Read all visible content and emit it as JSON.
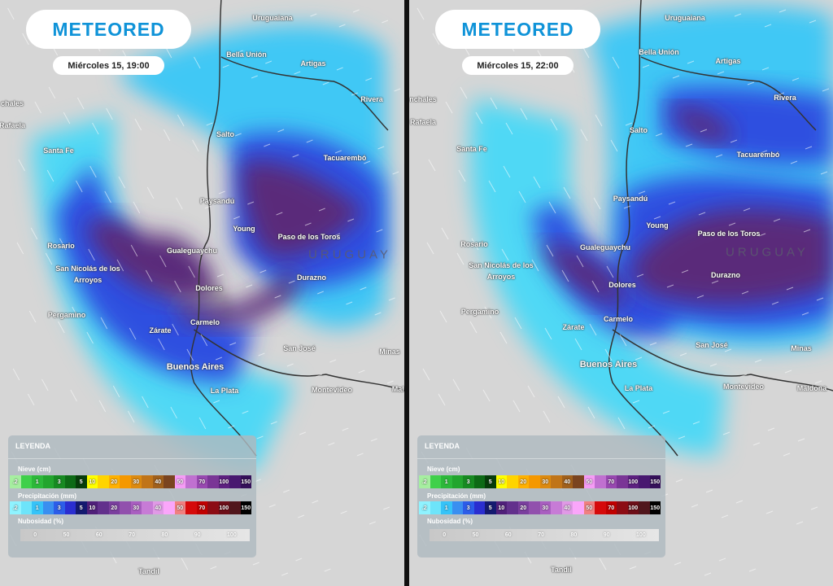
{
  "brand": "METEORED",
  "colors": {
    "brand": "#0f93d8",
    "precip_light": "#4fd8f5",
    "precip_mid": "#2d4fe0",
    "precip_heavy": "#5a2a7a"
  },
  "panels": [
    {
      "date": "Miércoles 15, 19:00",
      "cities": [
        "Uruguaiana",
        "Bella Unión",
        "Artigas",
        "Rivera",
        "chales",
        "Rafaela",
        "Santa Fe",
        "Salto",
        "Tacuarembó",
        "Paysandú",
        "Young",
        "Paso de los Toros",
        "Rosario",
        "Gualeguaychu",
        "San Nicolás de los",
        "Arroyos",
        "Durazno",
        "Dolores",
        "Pergamino",
        "Carmelo",
        "Zárate",
        "San José",
        "Minas",
        "Buenos Aires",
        "La Plata",
        "Montevideo",
        "Mald",
        "Tandil"
      ],
      "country": "URUGUAY"
    },
    {
      "date": "Miércoles 15, 22:00",
      "cities": [
        "Uruguaiana",
        "Bella Unión",
        "Artigas",
        "Rivera",
        "nchales",
        "Rafaela",
        "Santa Fe",
        "Salto",
        "Tacuarembó",
        "Paysandú",
        "Young",
        "Paso de los Toros",
        "Rosario",
        "Gualeguaychu",
        "San Nicolás de los",
        "Arroyos",
        "Durazno",
        "Dolores",
        "Pergamino",
        "Carmelo",
        "Zárate",
        "San José",
        "Minas",
        "Buenos Aires",
        "La Plata",
        "Montevideo",
        "Maldona",
        "Tandil"
      ],
      "country": "URUGUAY"
    }
  ],
  "legend": {
    "title": "LEYENDA",
    "snow": {
      "label": "Nieve (cm)",
      "cells": [
        [
          ".2",
          "#a6eea0"
        ],
        [
          "",
          "#3fd04a"
        ],
        [
          "1",
          "#2cb83a"
        ],
        [
          "",
          "#22a52e"
        ],
        [
          "3",
          "#178a22"
        ],
        [
          "",
          "#0d6a16"
        ],
        [
          "5",
          "#073d0b"
        ],
        [
          "10",
          "#ffff00"
        ],
        [
          "",
          "#ffd400"
        ],
        [
          "20",
          "#ffb100"
        ],
        [
          "",
          "#f59800"
        ],
        [
          "30",
          "#dc8a10"
        ],
        [
          "",
          "#c07418"
        ],
        [
          "40",
          "#a0601c"
        ],
        [
          "",
          "#7a4420"
        ],
        [
          "50",
          "#f59cf5"
        ],
        [
          "",
          "#c070d0"
        ],
        [
          "70",
          "#9848b0"
        ],
        [
          "",
          "#7a3596"
        ],
        [
          "100",
          "#5d2080"
        ],
        [
          "",
          "#481870"
        ],
        [
          "150",
          "#35105a"
        ]
      ]
    },
    "precip": {
      "label": "Precipitación (mm)",
      "cells": [
        [
          ".2",
          "#8ff3ff"
        ],
        [
          "",
          "#6de4fa"
        ],
        [
          "1",
          "#36c3f8"
        ],
        [
          "",
          "#3a8ff0"
        ],
        [
          "3",
          "#2c5de8"
        ],
        [
          "",
          "#2a2ed0"
        ],
        [
          "5",
          "#141a70"
        ],
        [
          "10",
          "#50207a"
        ],
        [
          "",
          "#62308c"
        ],
        [
          "20",
          "#7a3f9e"
        ],
        [
          "",
          "#9150ad"
        ],
        [
          "30",
          "#a95fc0"
        ],
        [
          "",
          "#c77bd6"
        ],
        [
          "40",
          "#e09ae6"
        ],
        [
          "",
          "#faa6fa"
        ],
        [
          "50",
          "#f08080"
        ],
        [
          "",
          "#d50a0a"
        ],
        [
          "70",
          "#c00000"
        ],
        [
          "",
          "#8c0c14"
        ],
        [
          "100",
          "#6d0e18"
        ],
        [
          "",
          "#50161c"
        ],
        [
          "150",
          "#000000"
        ]
      ]
    },
    "cloud": {
      "label": "Nubosidad (%)",
      "ticks": [
        "0",
        "50",
        "60",
        "70",
        "80",
        "90",
        "100"
      ]
    }
  }
}
